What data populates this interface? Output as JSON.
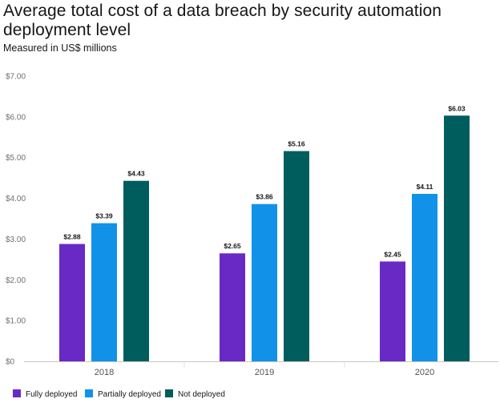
{
  "chart_data": {
    "type": "bar",
    "title": "Average total cost of a data breach by security automation deployment level",
    "subtitle": "Measured in US$ millions",
    "categories": [
      "2018",
      "2019",
      "2020"
    ],
    "series": [
      {
        "name": "Fully deployed",
        "color": "#6929c4",
        "values": [
          2.88,
          2.65,
          2.45
        ],
        "labels": [
          "$2.88",
          "$2.65",
          "$2.45"
        ]
      },
      {
        "name": "Partially deployed",
        "color": "#1192e8",
        "values": [
          3.39,
          3.86,
          4.11
        ],
        "labels": [
          "$3.39",
          "$3.86",
          "$4.11"
        ]
      },
      {
        "name": "Not deployed",
        "color": "#005d5d",
        "values": [
          4.43,
          5.16,
          6.03
        ],
        "labels": [
          "$4.43",
          "$5.16",
          "$6.03"
        ]
      }
    ],
    "ylim": [
      0,
      7
    ],
    "yticks": [
      0,
      1,
      2,
      3,
      4,
      5,
      6,
      7
    ],
    "ytick_labels": [
      "$0",
      "$1.00",
      "$2.00",
      "$3.00",
      "$4.00",
      "$5.00",
      "$6.00",
      "$7.00"
    ],
    "xlabel": "",
    "ylabel": "",
    "grid": false,
    "legend_position": "bottom-left"
  }
}
